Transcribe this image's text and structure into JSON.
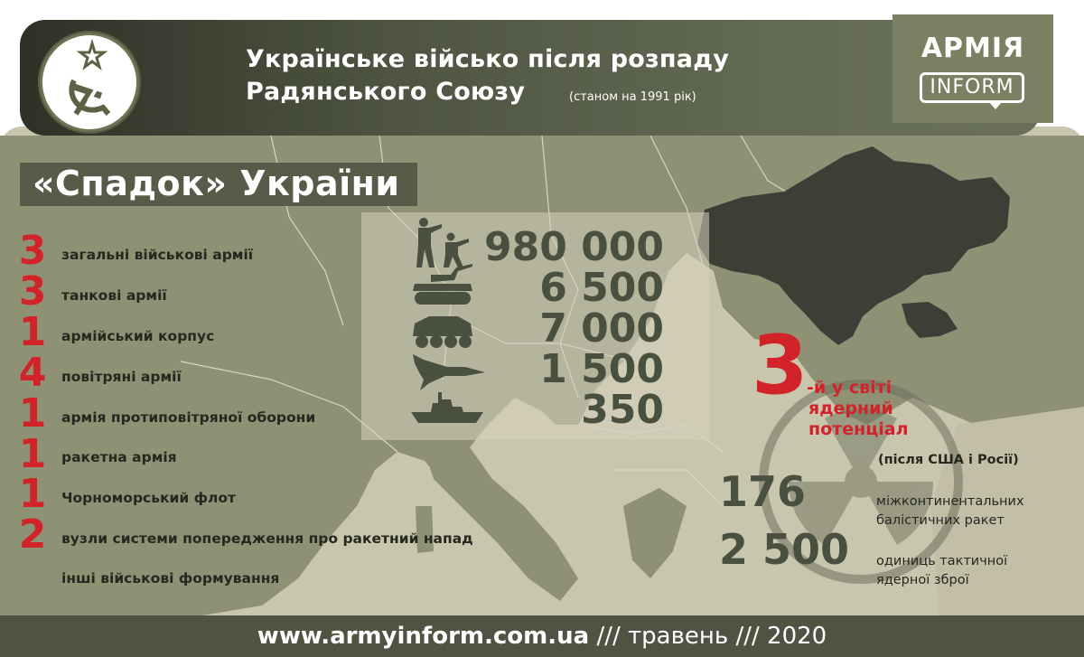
{
  "header": {
    "title_line1": "Українське військо після розпаду",
    "title_line2": "Радянського Союзу",
    "subtitle": "(станом на 1991 рік)",
    "emblem_icon": "hammer-sickle-star-broken-icon"
  },
  "logo": {
    "line1": "АРМІЯ",
    "line2": "INFORM"
  },
  "heritage": {
    "title": "«Спадок» України"
  },
  "units": [
    {
      "count": "3",
      "label": "загальні військові армії"
    },
    {
      "count": "3",
      "label": "танкові армії"
    },
    {
      "count": "1",
      "label": "армійський корпус"
    },
    {
      "count": "4",
      "label": "повітряні армії"
    },
    {
      "count": "1",
      "label": "армія протиповітряної оборони"
    },
    {
      "count": "1",
      "label": "ракетна армія"
    },
    {
      "count": "1",
      "label": "Чорноморський флот"
    },
    {
      "count": "2",
      "label": "вузли системи попередження про ракетний напад"
    },
    {
      "count": "",
      "label": "інші військові формування"
    }
  ],
  "stats": [
    {
      "value": "980 000",
      "icon": "soldiers-icon"
    },
    {
      "value": "6 500",
      "icon": "tank-icon"
    },
    {
      "value": "7 000",
      "icon": "armored-vehicle-icon"
    },
    {
      "value": "1 500",
      "icon": "aircraft-icon"
    },
    {
      "value": "350",
      "icon": "warship-icon"
    }
  ],
  "nuclear": {
    "rank": "3",
    "line1": "-й у світі",
    "line2": "ядерний",
    "line3": "потенціал",
    "after": "(після США і Росії)",
    "icbm_count": "176",
    "icbm_label1": "міжконтинентальних",
    "icbm_label2": "балістичних ракет",
    "tactical_count": "2 500",
    "tactical_label1": "одиниць тактичної",
    "tactical_label2": "ядерної зброї",
    "icon": "radiation-icon"
  },
  "footer": {
    "site": "www.armyinform.com.ua",
    "sep1": "///",
    "month": "травень",
    "sep2": "///",
    "year": "2020"
  },
  "colors": {
    "accent_red": "#d2232a",
    "olive_dark": "#4f5442",
    "olive_mid": "#6e7456",
    "map_land": "#8c8f72",
    "map_sea": "#c7c5ae"
  }
}
